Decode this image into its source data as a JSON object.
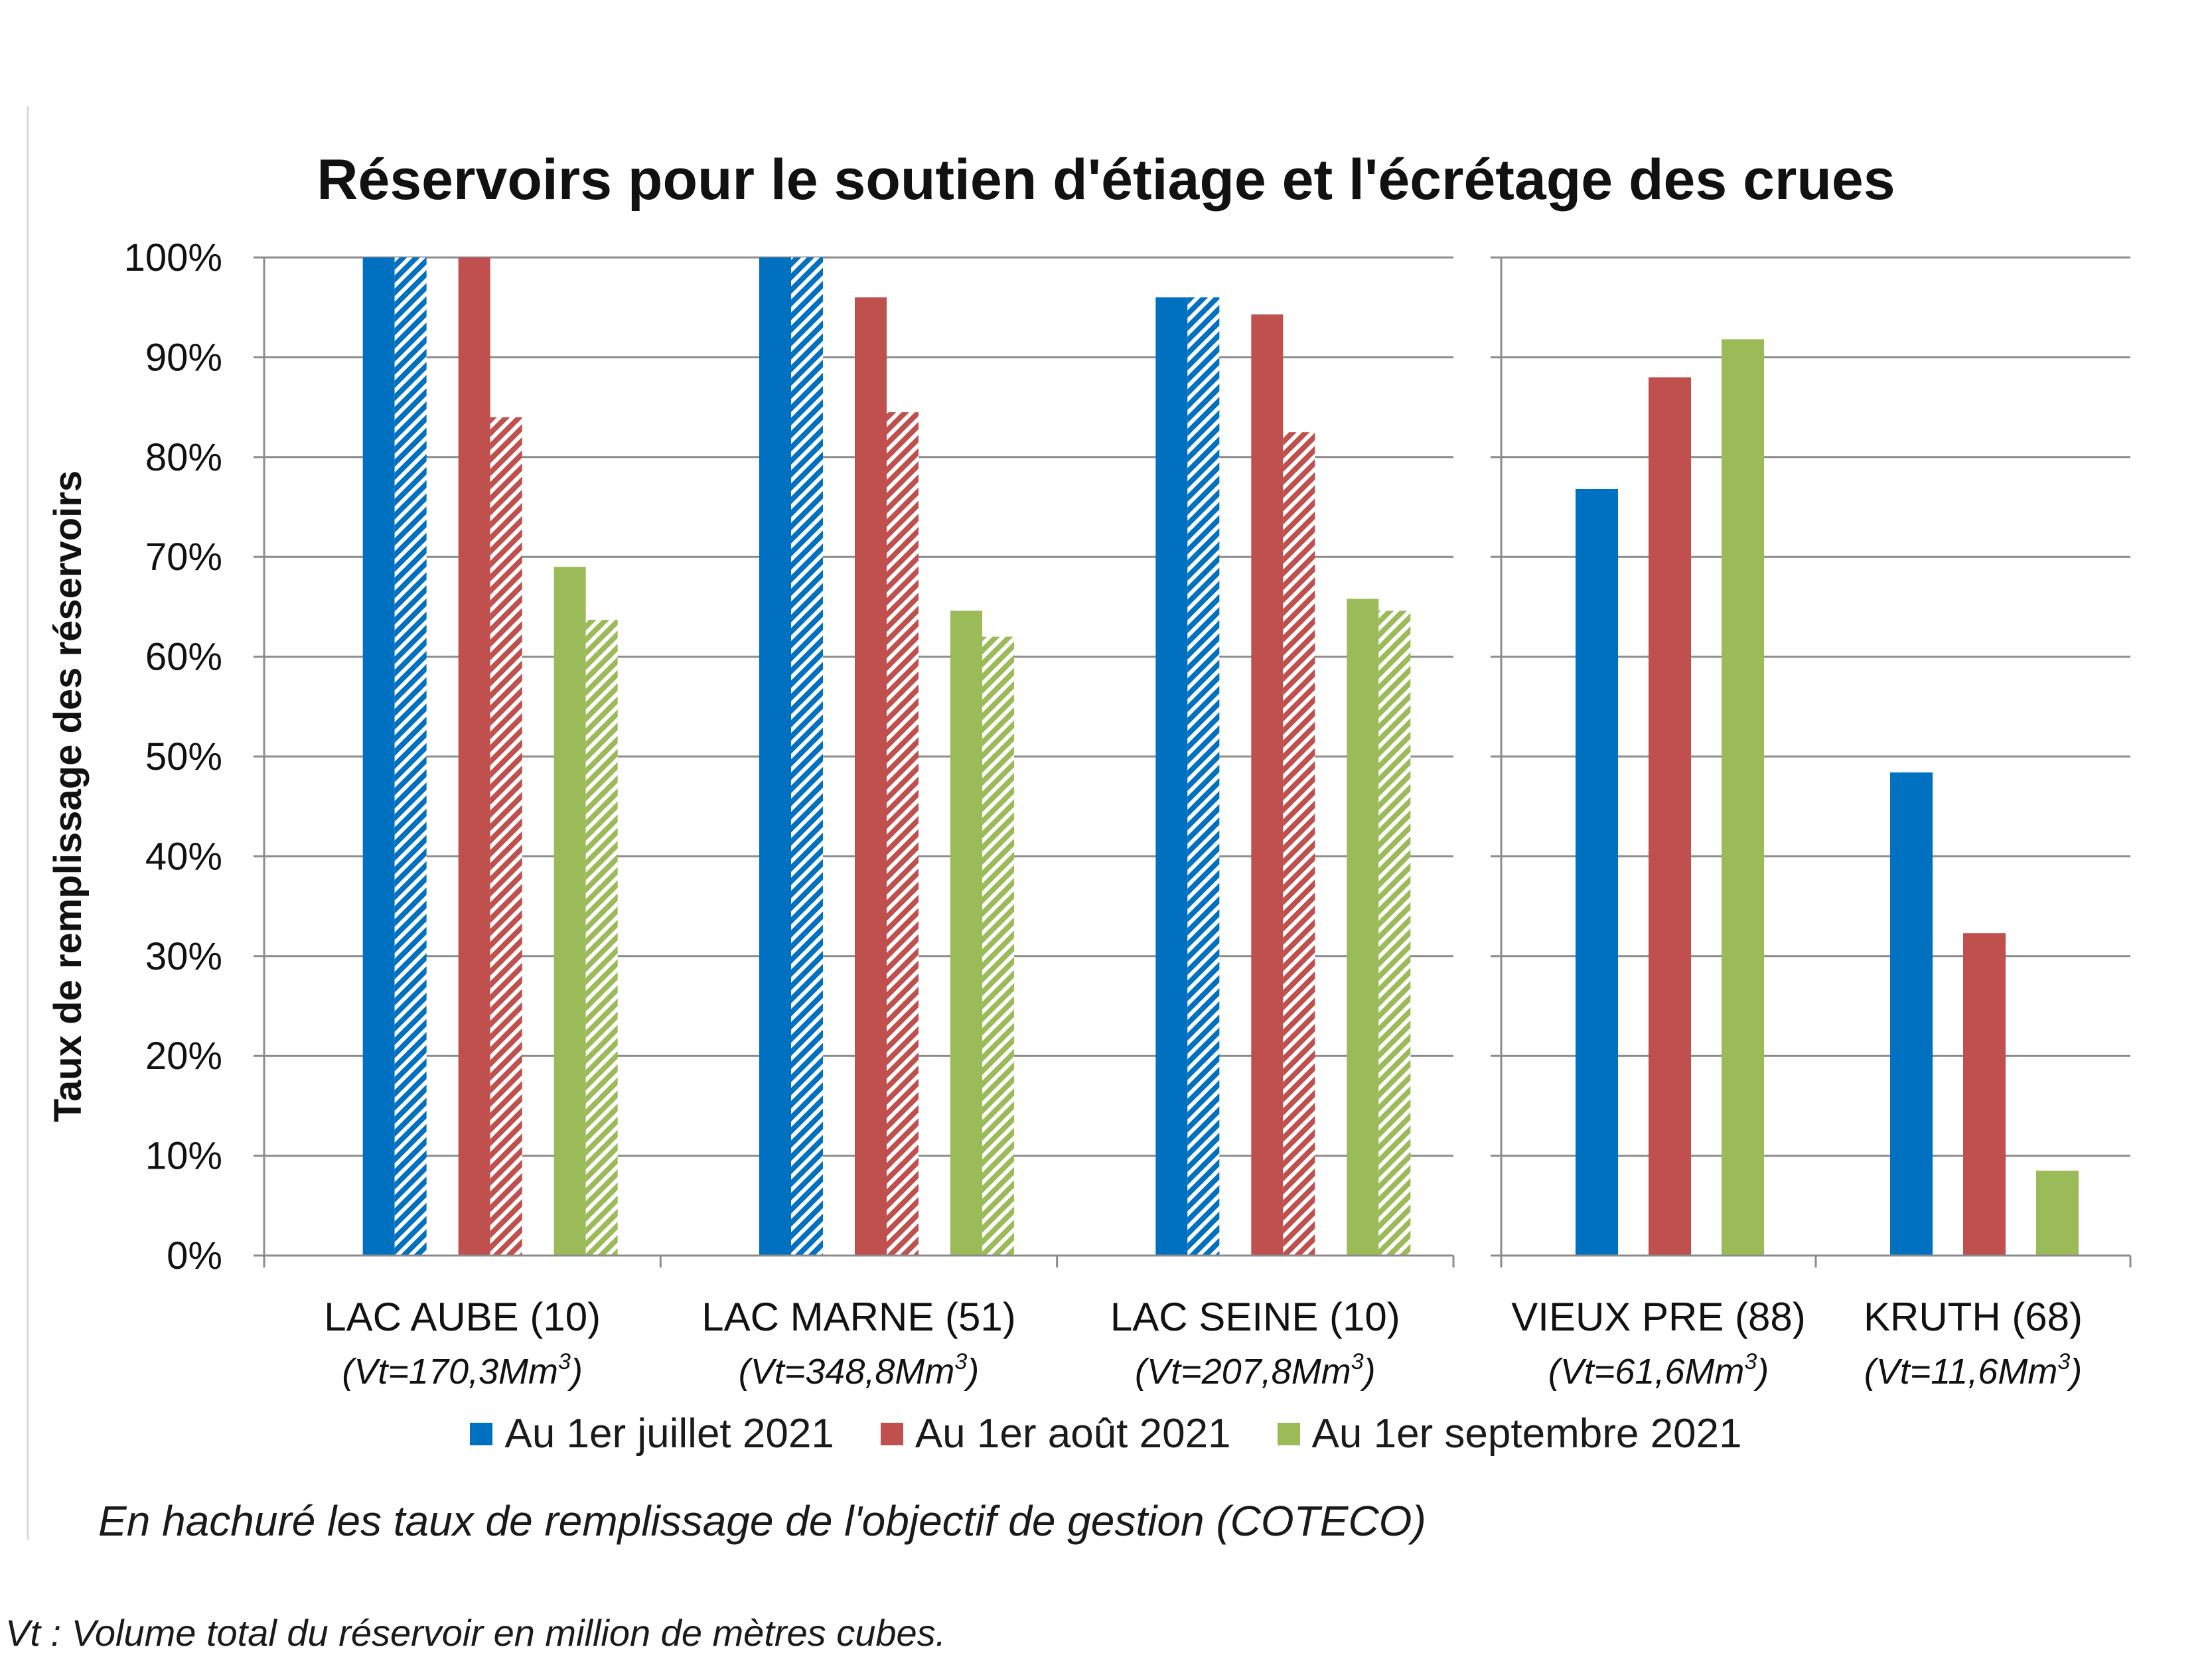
{
  "chart_data": {
    "type": "bar",
    "title": "Réservoirs pour le soutien d'étiage et l'écrétage des crues",
    "ylabel": "Taux de remplissage des réservoirs",
    "xlabel": "",
    "ylim": [
      0,
      100
    ],
    "y_ticks": [
      "0%",
      "10%",
      "20%",
      "30%",
      "40%",
      "50%",
      "60%",
      "70%",
      "80%",
      "90%",
      "100%"
    ],
    "grid": true,
    "legend_position": "bottom",
    "panels": [
      {
        "categories": [
          {
            "name": "LAC AUBE (10)",
            "volume_prefix": "(Vt=170,3Mm",
            "volume_suffix": ")"
          },
          {
            "name": "LAC MARNE (51)",
            "volume_prefix": "(Vt=348,8Mm",
            "volume_suffix": ")"
          },
          {
            "name": "LAC SEINE (10)",
            "volume_prefix": "(Vt=207,8Mm",
            "volume_suffix": ")"
          }
        ],
        "series": [
          {
            "name": "Au 1er juillet 2021",
            "color": "#0070c0",
            "values": [
              100,
              100,
              96
            ],
            "objective": [
              100,
              100,
              96
            ]
          },
          {
            "name": "Au 1er août 2021",
            "color": "#c0504d",
            "values": [
              100,
              96,
              94.3
            ],
            "objective": [
              84,
              84.5,
              82.5
            ]
          },
          {
            "name": "Au 1er septembre 2021",
            "color": "#9bbb59",
            "values": [
              69,
              64.6,
              65.8
            ],
            "objective": [
              63.7,
              62,
              64.6
            ]
          }
        ]
      },
      {
        "categories": [
          {
            "name": "VIEUX PRE (88)",
            "volume_prefix": "(Vt=61,6Mm",
            "volume_suffix": ")"
          },
          {
            "name": "KRUTH (68)",
            "volume_prefix": "(Vt=11,6Mm",
            "volume_suffix": ")"
          }
        ],
        "series": [
          {
            "name": "Au 1er juillet 2021",
            "color": "#0070c0",
            "values": [
              76.8,
              48.4
            ]
          },
          {
            "name": "Au 1er août 2021",
            "color": "#c0504d",
            "values": [
              88,
              32.3
            ]
          },
          {
            "name": "Au 1er septembre 2021",
            "color": "#9bbb59",
            "values": [
              91.8,
              8.5
            ]
          }
        ]
      }
    ],
    "volume_exponent": "3",
    "legend": [
      {
        "name": "Au 1er juillet 2021",
        "color": "#0070c0"
      },
      {
        "name": "Au 1er août 2021",
        "color": "#c0504d"
      },
      {
        "name": "Au 1er septembre 2021",
        "color": "#9bbb59"
      }
    ]
  },
  "notes": {
    "hatch_note": "En hachuré les taux de remplissage de l'objectif de gestion (COTECO)",
    "vt_note": "Vt : Volume total du réservoir en million de mètres cubes."
  }
}
